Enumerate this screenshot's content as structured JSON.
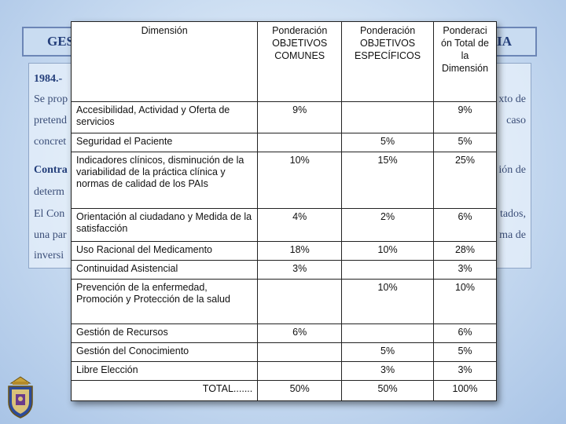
{
  "slide": {
    "title_left": "GES",
    "title_right": "IARIA",
    "paragraph_lines": [
      {
        "text_bold": "1984.-",
        "text": ""
      },
      {
        "text_bold": "",
        "text": "Se prop"
      },
      {
        "text_bold": "",
        "text": "pretend"
      },
      {
        "text_bold": "",
        "text": "concret"
      },
      {
        "text_bold": "Contra",
        "text": ""
      },
      {
        "text_bold": "",
        "text": "determ"
      },
      {
        "text_bold": "",
        "text": "El Con"
      },
      {
        "text_bold": "",
        "text": "una par"
      },
      {
        "text_bold": "",
        "text": "inversi"
      }
    ],
    "paragraph_right": [
      "xto de",
      "caso",
      "ión de",
      "tados,",
      "ma de"
    ]
  },
  "table": {
    "headers": [
      "Dimensión",
      "Ponderación OBJETIVOS COMUNES",
      "Ponderación OBJETIVOS ESPECÍFICOS",
      "Ponderaci ón Total de la Dimensión"
    ],
    "rows": [
      {
        "dimension": "Accesibilidad, Actividad y Oferta de servicios",
        "comunes": "9%",
        "especificos": "",
        "total": "9%"
      },
      {
        "dimension": "Seguridad el Paciente",
        "comunes": "",
        "especificos": "5%",
        "total": "5%"
      },
      {
        "dimension": "Indicadores clínicos, disminución de la variabilidad de la práctica clínica y normas de calidad de los PAIs",
        "comunes": "10%",
        "especificos": "15%",
        "total": "25%"
      },
      {
        "dimension": "Orientación al ciudadano y Medida de la satisfacción",
        "comunes": "4%",
        "especificos": "2%",
        "total": "6%"
      },
      {
        "dimension": "Uso Racional del Medicamento",
        "comunes": "18%",
        "especificos": "10%",
        "total": "28%"
      },
      {
        "dimension": "Continuidad Asistencial",
        "comunes": "3%",
        "especificos": "",
        "total": "3%"
      },
      {
        "dimension": "Prevención de la enfermedad, Promoción y Protección de la salud",
        "comunes": "",
        "especificos": "10%",
        "total": "10%"
      },
      {
        "dimension": "Gestión de Recursos",
        "comunes": "6%",
        "especificos": "",
        "total": "6%"
      },
      {
        "dimension": "Gestión del Conocimiento",
        "comunes": "",
        "especificos": "5%",
        "total": "5%"
      },
      {
        "dimension": "Libre Elección",
        "comunes": "",
        "especificos": "3%",
        "total": "3%"
      }
    ],
    "total_row": {
      "label": "TOTAL.......",
      "comunes": "50%",
      "especificos": "50%",
      "total": "100%"
    }
  }
}
